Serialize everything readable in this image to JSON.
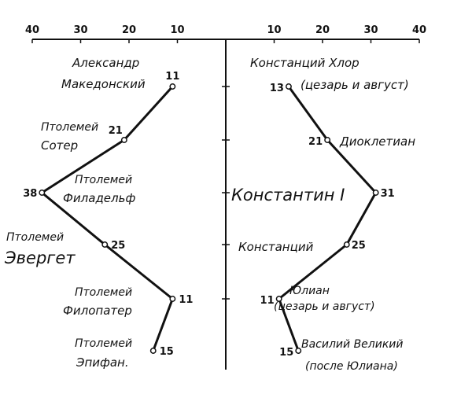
{
  "chart_data": [
    {
      "type": "line",
      "side": "left",
      "xlim": [
        40,
        0
      ],
      "x_ticks": [
        40,
        30,
        20,
        10
      ],
      "grid": false,
      "points": [
        {
          "label": [
            "Александр",
            "Македонский"
          ],
          "value": 11
        },
        {
          "label": [
            "Птолемей",
            "Сотер"
          ],
          "value": 21
        },
        {
          "label": [
            "Птолемей",
            "Филадельф"
          ],
          "value": 38
        },
        {
          "label": [
            "Птолемей",
            "Эвергет"
          ],
          "value": 25
        },
        {
          "label": [
            "Птолемей",
            "Филопатер"
          ],
          "value": 11
        },
        {
          "label": [
            "Птолемей",
            "Эпифан."
          ],
          "value": 15
        }
      ]
    },
    {
      "type": "line",
      "side": "right",
      "xlim": [
        0,
        40
      ],
      "x_ticks": [
        10,
        20,
        30,
        40
      ],
      "grid": false,
      "points": [
        {
          "label": [
            "Констанций Хлор",
            "(цезарь и август)"
          ],
          "value": 13
        },
        {
          "label": [
            "Диоклетиан"
          ],
          "value": 21
        },
        {
          "label": [
            "Константин I"
          ],
          "value": 31
        },
        {
          "label": [
            "Констанций"
          ],
          "value": 25
        },
        {
          "label": [
            "Юлиан",
            "(цезарь и август)"
          ],
          "value": 11
        },
        {
          "label": [
            "Василий Великий",
            "(после Юлиана)"
          ],
          "value": 15
        }
      ]
    }
  ],
  "colors": {
    "ink": "#111111",
    "background": "#ffffff"
  }
}
